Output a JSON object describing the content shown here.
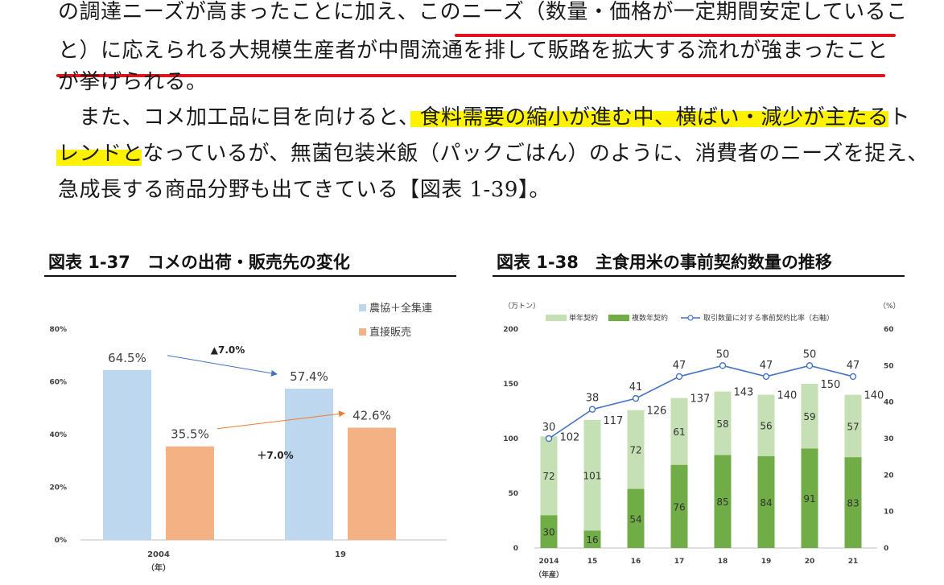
{
  "paragraph": {
    "line1": "の調達ニーズが高まったことに加え、このニーズ（数量・価格が一定期間安定しているこ",
    "line2": "と）に応えられる大規模生産者が中間流通を排して販路を拡大する流れが強まったこと",
    "line3": "が挙げられる。",
    "line4": "　また、コメ加工品に目を向けると、食料需要の縮小が進む中、横ばい・減少が主たるト",
    "line5": "レンドとなっているが、無菌包装米飯（パックごはん）のように、消費者のニーズを捉え、",
    "line6": "急成長する商品分野も出てきている【図表 1-39】。"
  },
  "colors": {
    "underline": "#e0141e",
    "highlight": "#fff200",
    "bar_blue": "#bdd7ee",
    "bar_orange": "#f4b183",
    "bar_light_green": "#c5e0b4",
    "bar_dark_green": "#70ad47",
    "line_blue": "#4472c4",
    "arrow_orange": "#ed7d31"
  },
  "figure_37": {
    "title": "図表 1-37　コメの出荷・販売先の変化",
    "chart_data": {
      "type": "bar",
      "categories": [
        "2004",
        "19"
      ],
      "xlabel": "（年）",
      "ylim": [
        0,
        80
      ],
      "yticks": [
        "0%",
        "20%",
        "40%",
        "60%",
        "80%"
      ],
      "series": [
        {
          "name": "農協＋全集連",
          "values": [
            64.5,
            57.4
          ],
          "labels": [
            "64.5%",
            "57.4%"
          ]
        },
        {
          "name": "直接販売",
          "values": [
            35.5,
            42.6
          ],
          "labels": [
            "35.5%",
            "42.6%"
          ]
        }
      ],
      "annotations": {
        "decrease": "▲7.0%",
        "increase": "＋7.0%"
      },
      "legend_position": "top-right"
    }
  },
  "figure_38": {
    "title": "図表 1-38　主食用米の事前契約数量の推移",
    "chart_data": {
      "type": "bar",
      "stacked": true,
      "categories": [
        "2014",
        "15",
        "16",
        "17",
        "18",
        "19",
        "20",
        "21"
      ],
      "xlabel": "（年産）",
      "ylabel_left": "（万トン）",
      "ylabel_right": "（%）",
      "ylim_left": [
        0,
        200
      ],
      "ylim_right": [
        0,
        60
      ],
      "yticks_left": [
        "0",
        "50",
        "100",
        "150",
        "200"
      ],
      "yticks_right": [
        "0",
        "10",
        "20",
        "30",
        "40",
        "50",
        "60"
      ],
      "series": [
        {
          "name": "複数年契約",
          "values": [
            30,
            16,
            54,
            76,
            85,
            84,
            91,
            83
          ]
        },
        {
          "name": "単年契約",
          "values": [
            72,
            101,
            72,
            61,
            58,
            56,
            59,
            57
          ]
        },
        {
          "name": "取引数量に対する事前契約比率（右軸）",
          "type": "line",
          "axis": "right",
          "values": [
            30,
            38,
            41,
            47,
            50,
            47,
            50,
            47
          ]
        }
      ],
      "totals": [
        102,
        117,
        126,
        137,
        143,
        140,
        150,
        140
      ],
      "legend_position": "top"
    }
  }
}
